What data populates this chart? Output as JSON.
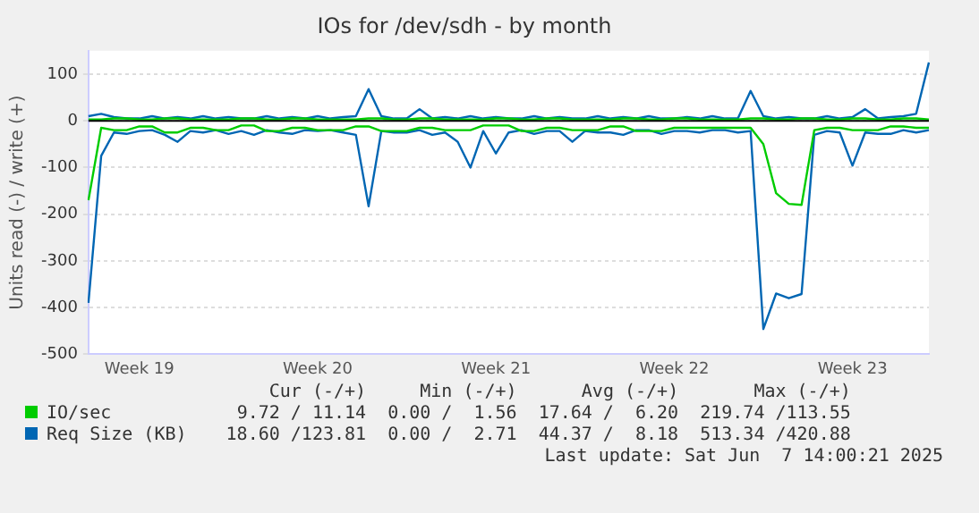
{
  "chart_data": {
    "type": "line",
    "title": "IOs for /dev/sdh - by month",
    "ylabel": "Units read (-) / write (+)",
    "categories": [
      null,
      null,
      null,
      null,
      "Week 19",
      null,
      null,
      null,
      null,
      null,
      null,
      null,
      null,
      null,
      null,
      null,
      null,
      null,
      "Week 20",
      null,
      null,
      null,
      null,
      null,
      null,
      null,
      null,
      null,
      null,
      null,
      null,
      null,
      "Week 21",
      null,
      null,
      null,
      null,
      null,
      null,
      null,
      null,
      null,
      null,
      null,
      null,
      null,
      "Week 22",
      null,
      null,
      null,
      null,
      null,
      null,
      null,
      null,
      null,
      null,
      null,
      null,
      null,
      "Week 23",
      null,
      null,
      null,
      null,
      null,
      null
    ],
    "ylim": [
      -500,
      150
    ],
    "yticks": [
      -500,
      -400,
      -300,
      -200,
      -100,
      0,
      100
    ],
    "grid": "y",
    "legend": "bottom",
    "ref_lines": [
      {
        "axis": "y",
        "value": 0,
        "color": "#000000"
      }
    ],
    "series": [
      {
        "name": "IO/sec",
        "color": "#00cc00",
        "values": [
          3,
          3,
          5,
          5,
          3,
          3,
          5,
          5,
          3,
          3,
          3,
          3,
          5,
          5,
          3,
          3,
          5,
          5,
          3,
          3,
          3,
          3,
          5,
          5,
          3,
          3,
          5,
          5,
          3,
          3,
          3,
          3,
          5,
          5,
          3,
          3,
          5,
          5,
          3,
          3,
          3,
          3,
          5,
          5,
          3,
          3,
          5,
          5,
          3,
          3,
          3,
          3,
          5,
          5,
          3,
          3,
          5,
          5,
          3,
          3,
          5,
          5,
          3,
          3,
          5,
          5,
          3
        ]
      },
      {
        "color": "#00cc00",
        "values": [
          -170,
          -15,
          -20,
          -20,
          -12,
          -12,
          -25,
          -25,
          -15,
          -15,
          -20,
          -20,
          -10,
          -10,
          -22,
          -22,
          -15,
          -15,
          -20,
          -20,
          -20,
          -12,
          -12,
          -22,
          -22,
          -22,
          -15,
          -15,
          -20,
          -20,
          -20,
          -10,
          -10,
          -10,
          -22,
          -22,
          -15,
          -15,
          -20,
          -20,
          -20,
          -12,
          -12,
          -22,
          -22,
          -22,
          -15,
          -15,
          -15,
          -15,
          -15,
          -15,
          -15,
          -50,
          -155,
          -178,
          -180,
          -20,
          -15,
          -15,
          -20,
          -20,
          -20,
          -12,
          -12,
          -15,
          -15
        ]
      },
      {
        "name": "Req Size (KB)",
        "color": "#0066b3",
        "values": [
          10,
          15,
          8,
          5,
          5,
          10,
          5,
          8,
          5,
          10,
          5,
          8,
          5,
          5,
          10,
          5,
          8,
          5,
          10,
          5,
          8,
          10,
          68,
          10,
          5,
          5,
          25,
          5,
          8,
          5,
          10,
          5,
          8,
          5,
          5,
          10,
          5,
          8,
          5,
          5,
          10,
          5,
          8,
          5,
          10,
          5,
          5,
          8,
          5,
          10,
          5,
          5,
          64,
          10,
          5,
          8,
          5,
          5,
          10,
          5,
          8,
          25,
          5,
          8,
          10,
          15,
          125
        ]
      },
      {
        "color": "#0066b3",
        "values": [
          -390,
          -75,
          -25,
          -28,
          -22,
          -20,
          -30,
          -45,
          -22,
          -25,
          -20,
          -28,
          -22,
          -30,
          -20,
          -25,
          -28,
          -20,
          -22,
          -20,
          -25,
          -30,
          -183,
          -22,
          -25,
          -25,
          -20,
          -30,
          -25,
          -45,
          -100,
          -22,
          -70,
          -25,
          -20,
          -28,
          -22,
          -22,
          -45,
          -22,
          -25,
          -25,
          -30,
          -20,
          -20,
          -28,
          -22,
          -22,
          -25,
          -20,
          -20,
          -25,
          -22,
          -446,
          -370,
          -380,
          -371,
          -30,
          -22,
          -25,
          -96,
          -25,
          -28,
          -28,
          -20,
          -25,
          -20
        ]
      }
    ],
    "annotations": [
      "Cur (-/+)",
      "Min (-/+)",
      "Avg (-/+)",
      "Max (-/+)",
      "9.72 / 11.14",
      "0.00 /  1.56",
      "17.64 /  6.20",
      "219.74 /113.55",
      "18.60 /123.81",
      "0.00 /  2.71",
      "44.37 /  8.18",
      "513.34 /420.88",
      "Last update: Sat Jun  7 14:00:21 2025"
    ]
  }
}
